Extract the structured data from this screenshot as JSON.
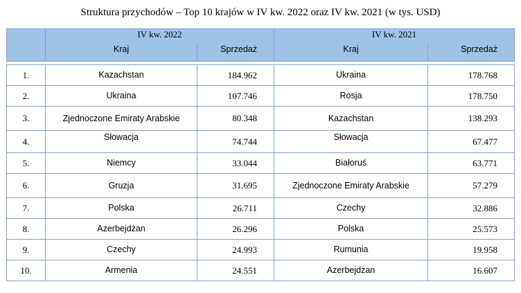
{
  "title": "Struktura przychodów – Top 10 krajów w IV kw. 2022 oraz IV kw. 2021 (w tys. USD)",
  "header": {
    "group_2022": "IV kw. 2022",
    "group_2021": "IV kw. 2021",
    "col_kraj": "Kraj",
    "col_sprzedaz": "Sprzedaż"
  },
  "rows": [
    {
      "rank": "1.",
      "kraj_2022": "Kazachstan",
      "sprz_2022": "184.962",
      "kraj_2021": "Ukraina",
      "sprz_2021": "178.768"
    },
    {
      "rank": "2.",
      "kraj_2022": "Ukraina",
      "sprz_2022": "107.746",
      "kraj_2021": "Rosja",
      "sprz_2021": "178.750"
    },
    {
      "rank": "3.",
      "kraj_2022": "Zjednoczone Emiraty Arabskie",
      "sprz_2022": "80.348",
      "kraj_2021": "Kazachstan",
      "sprz_2021": "138.293"
    },
    {
      "rank": "4.",
      "kraj_2022": "Słowacja",
      "sprz_2022": "74.744",
      "kraj_2021": "Słowacja",
      "sprz_2021": "67.477"
    },
    {
      "rank": "5.",
      "kraj_2022": "Niemcy",
      "sprz_2022": "33.044",
      "kraj_2021": "Białoruś",
      "sprz_2021": "63.771"
    },
    {
      "rank": "6.",
      "kraj_2022": "Gruzja",
      "sprz_2022": "31.695",
      "kraj_2021": "Zjednoczone Emiraty Arabskie",
      "sprz_2021": "57.279"
    },
    {
      "rank": "7.",
      "kraj_2022": "Polska",
      "sprz_2022": "26.711",
      "kraj_2021": "Czechy",
      "sprz_2021": "32.886"
    },
    {
      "rank": "8.",
      "kraj_2022": "Azerbejdżan",
      "sprz_2022": "26.296",
      "kraj_2021": "Polska",
      "sprz_2021": "25.573"
    },
    {
      "rank": "9.",
      "kraj_2022": "Czechy",
      "sprz_2022": "24.993",
      "kraj_2021": "Rumunia",
      "sprz_2021": "19.958"
    },
    {
      "rank": "10.",
      "kraj_2022": "Armenia",
      "sprz_2022": "24.551",
      "kraj_2021": "Azerbejdżan",
      "sprz_2021": "16.607"
    }
  ],
  "colors": {
    "header_bg": "#9dc3e6",
    "border": "#7f9fcf"
  }
}
